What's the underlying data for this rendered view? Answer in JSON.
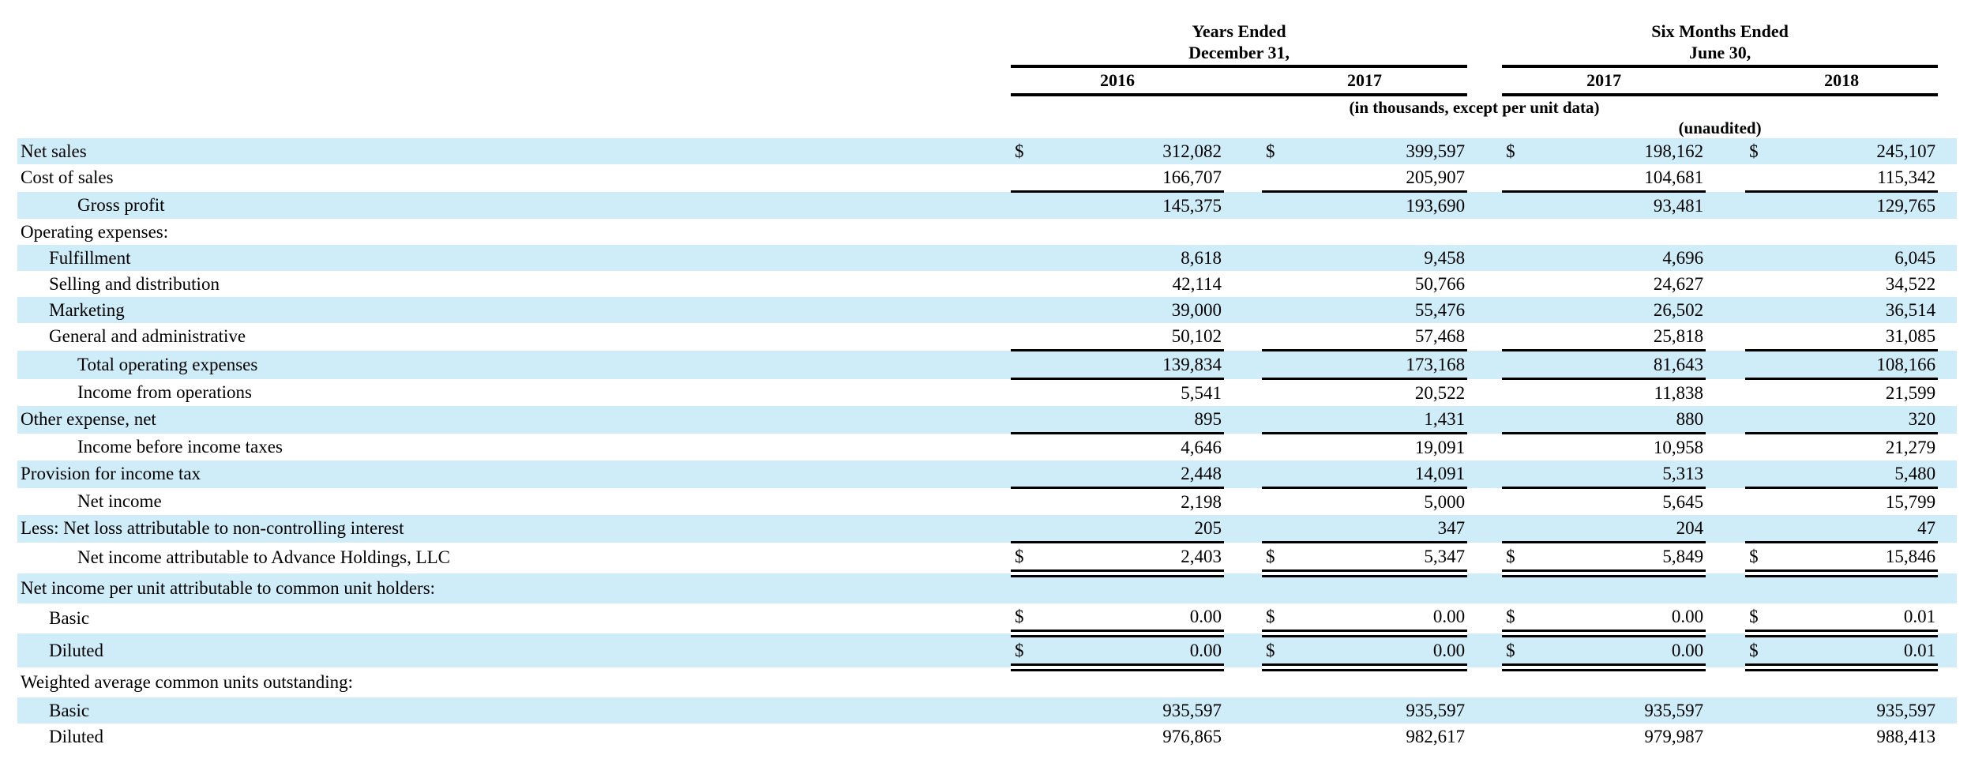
{
  "table": {
    "col_groups": [
      {
        "line1": "Years Ended",
        "line2": "December 31,",
        "years": [
          "2016",
          "2017"
        ]
      },
      {
        "line1": "Six Months Ended",
        "line2": "June 30,",
        "years": [
          "2017",
          "2018"
        ]
      }
    ],
    "units_note": "(in thousands, except per unit data)",
    "unaudited_note": "(unaudited)",
    "shade_color": "#cfecf9",
    "rows": [
      {
        "label": "Net sales",
        "indent": 0,
        "dollar": true,
        "values": [
          "312,082",
          "399,597",
          "198,162",
          "245,107"
        ],
        "shade": true,
        "rule": "none"
      },
      {
        "label": "Cost of sales",
        "indent": 0,
        "dollar": false,
        "values": [
          "166,707",
          "205,907",
          "104,681",
          "115,342"
        ],
        "shade": false,
        "rule": "single"
      },
      {
        "label": "Gross profit",
        "indent": 2,
        "dollar": false,
        "values": [
          "145,375",
          "193,690",
          "93,481",
          "129,765"
        ],
        "shade": true,
        "rule": "none"
      },
      {
        "label": "Operating expenses:",
        "indent": 0,
        "dollar": false,
        "values": null,
        "shade": false,
        "rule": "none"
      },
      {
        "label": "Fulfillment",
        "indent": 1,
        "dollar": false,
        "values": [
          "8,618",
          "9,458",
          "4,696",
          "6,045"
        ],
        "shade": true,
        "rule": "none"
      },
      {
        "label": "Selling and distribution",
        "indent": 1,
        "dollar": false,
        "values": [
          "42,114",
          "50,766",
          "24,627",
          "34,522"
        ],
        "shade": false,
        "rule": "none"
      },
      {
        "label": "Marketing",
        "indent": 1,
        "dollar": false,
        "values": [
          "39,000",
          "55,476",
          "26,502",
          "36,514"
        ],
        "shade": true,
        "rule": "none"
      },
      {
        "label": "General and administrative",
        "indent": 1,
        "dollar": false,
        "values": [
          "50,102",
          "57,468",
          "25,818",
          "31,085"
        ],
        "shade": false,
        "rule": "single"
      },
      {
        "label": "Total operating expenses",
        "indent": 2,
        "dollar": false,
        "values": [
          "139,834",
          "173,168",
          "81,643",
          "108,166"
        ],
        "shade": true,
        "rule": "single"
      },
      {
        "label": "Income from operations",
        "indent": 2,
        "dollar": false,
        "values": [
          "5,541",
          "20,522",
          "11,838",
          "21,599"
        ],
        "shade": false,
        "rule": "none"
      },
      {
        "label": "Other expense, net",
        "indent": 0,
        "dollar": false,
        "values": [
          "895",
          "1,431",
          "880",
          "320"
        ],
        "shade": true,
        "rule": "single"
      },
      {
        "label": "Income before income taxes",
        "indent": 2,
        "dollar": false,
        "values": [
          "4,646",
          "19,091",
          "10,958",
          "21,279"
        ],
        "shade": false,
        "rule": "none"
      },
      {
        "label": "Provision for income tax",
        "indent": 0,
        "dollar": false,
        "values": [
          "2,448",
          "14,091",
          "5,313",
          "5,480"
        ],
        "shade": true,
        "rule": "single"
      },
      {
        "label": "Net income",
        "indent": 2,
        "dollar": false,
        "values": [
          "2,198",
          "5,000",
          "5,645",
          "15,799"
        ],
        "shade": false,
        "rule": "none"
      },
      {
        "label": "Less: Net loss attributable to non-controlling interest",
        "indent": 0,
        "dollar": false,
        "values": [
          "205",
          "347",
          "204",
          "47"
        ],
        "shade": true,
        "rule": "single"
      },
      {
        "label": "Net income attributable to Advance Holdings, LLC",
        "indent": 2,
        "dollar": true,
        "values": [
          "2,403",
          "5,347",
          "5,849",
          "15,846"
        ],
        "shade": false,
        "rule": "double"
      },
      {
        "label": "Net income per unit attributable to common unit holders:",
        "indent": 0,
        "dollar": false,
        "values": null,
        "shade": true,
        "rule": "none"
      },
      {
        "label": "Basic",
        "indent": 1,
        "dollar": true,
        "values": [
          "0.00",
          "0.00",
          "0.00",
          "0.01"
        ],
        "shade": false,
        "rule": "double"
      },
      {
        "label": "Diluted",
        "indent": 1,
        "dollar": true,
        "values": [
          "0.00",
          "0.00",
          "0.00",
          "0.01"
        ],
        "shade": true,
        "rule": "double"
      },
      {
        "label": "Weighted average common units outstanding:",
        "indent": 0,
        "dollar": false,
        "values": null,
        "shade": false,
        "rule": "none"
      },
      {
        "label": "Basic",
        "indent": 1,
        "dollar": false,
        "values": [
          "935,597",
          "935,597",
          "935,597",
          "935,597"
        ],
        "shade": true,
        "rule": "none"
      },
      {
        "label": "Diluted",
        "indent": 1,
        "dollar": false,
        "values": [
          "976,865",
          "982,617",
          "979,987",
          "988,413"
        ],
        "shade": false,
        "rule": "none"
      }
    ]
  }
}
